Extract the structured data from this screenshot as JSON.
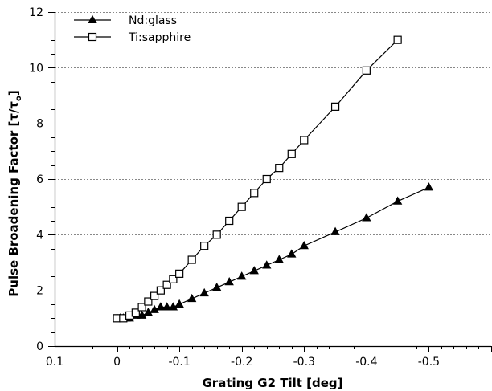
{
  "chart_data": {
    "type": "line",
    "xlabel": "Grating G2 Tilt [deg]",
    "ylabel_main": "Pulse Broadening Factor [τ/τ",
    "ylabel_sub": "o",
    "ylabel_end": "]",
    "xlim": [
      0.1,
      -0.6
    ],
    "ylim": [
      0,
      12
    ],
    "x_ticks": [
      0.1,
      0,
      -0.1,
      -0.2,
      -0.3,
      -0.4,
      -0.5
    ],
    "x_tick_labels": [
      "0.1",
      "0",
      "-0.1",
      "-0.2",
      "-0.3",
      "-0.4",
      "-0.5"
    ],
    "y_ticks": [
      0,
      2,
      4,
      6,
      8,
      10,
      12
    ],
    "y_tick_labels": [
      "0",
      "2",
      "4",
      "6",
      "8",
      "10",
      "12"
    ],
    "grid": "horizontal dotted",
    "legend_position": "top-left",
    "series": [
      {
        "name": "Nd:glass",
        "marker": "filled-triangle",
        "color": "#000000",
        "x": [
          0,
          -0.005,
          -0.01,
          -0.015,
          -0.02,
          -0.03,
          -0.04,
          -0.05,
          -0.06,
          -0.07,
          -0.08,
          -0.09,
          -0.1,
          -0.12,
          -0.14,
          -0.16,
          -0.18,
          -0.2,
          -0.22,
          -0.24,
          -0.26,
          -0.28,
          -0.3,
          -0.35,
          -0.4,
          -0.45,
          -0.5
        ],
        "y": [
          1.0,
          1.0,
          1.0,
          1.0,
          1.0,
          1.1,
          1.1,
          1.2,
          1.3,
          1.4,
          1.4,
          1.4,
          1.5,
          1.7,
          1.9,
          2.1,
          2.3,
          2.5,
          2.7,
          2.9,
          3.1,
          3.3,
          3.6,
          4.1,
          4.6,
          5.2,
          5.7
        ]
      },
      {
        "name": "Ti:sapphire",
        "marker": "open-square",
        "color": "#000000",
        "x": [
          0,
          -0.01,
          -0.02,
          -0.03,
          -0.04,
          -0.05,
          -0.06,
          -0.07,
          -0.08,
          -0.09,
          -0.1,
          -0.12,
          -0.14,
          -0.16,
          -0.18,
          -0.2,
          -0.22,
          -0.24,
          -0.26,
          -0.28,
          -0.3,
          -0.35,
          -0.4,
          -0.45
        ],
        "y": [
          1.0,
          1.0,
          1.1,
          1.2,
          1.4,
          1.6,
          1.8,
          2.0,
          2.2,
          2.4,
          2.6,
          3.1,
          3.6,
          4.0,
          4.5,
          5.0,
          5.5,
          6.0,
          6.4,
          6.9,
          7.4,
          8.6,
          9.9,
          11.0
        ]
      }
    ]
  }
}
